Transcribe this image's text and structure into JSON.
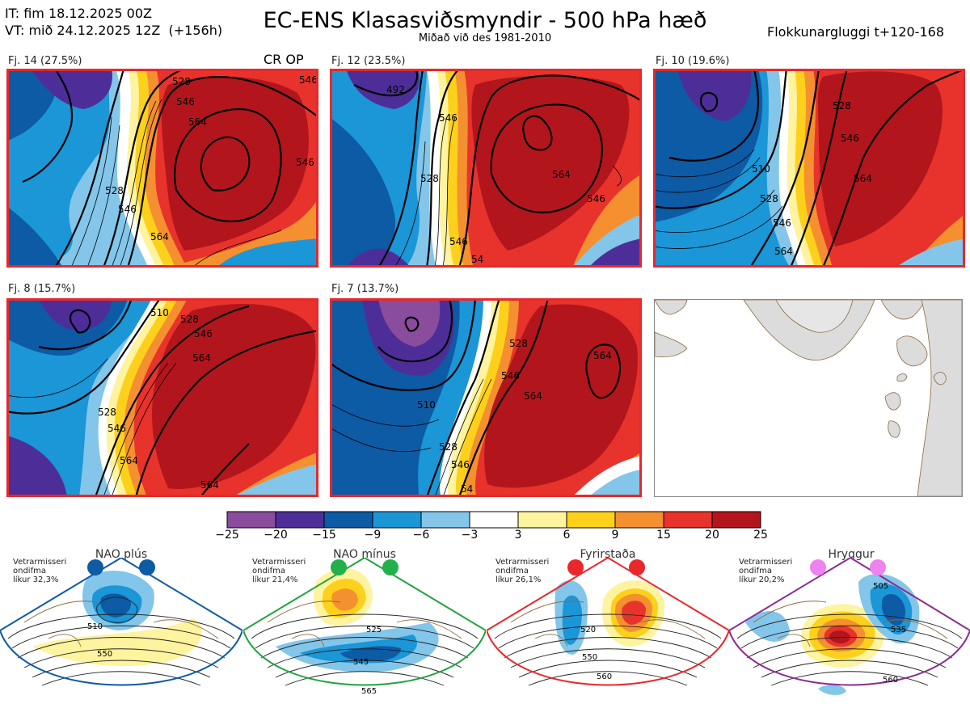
{
  "header": {
    "it_line": "IT: fim 18.12.2025 00Z",
    "vt_line": "VT: mið 24.12.2025 12Z  (+156h)",
    "title": "EC-ENS Klasasviðsmyndir - 500 hPa hæð",
    "subtitle": "Miðað við des 1981-2010",
    "window": "Flokkunargluggi t+120-168",
    "crop_label": "CR OP"
  },
  "colors": {
    "frame": "#e8282b",
    "land": "#dcdcdc",
    "coast": "#8b6a3f",
    "anom": [
      "#8a4c9c",
      "#4d2e98",
      "#0d5aa5",
      "#1b96d6",
      "#83c6ea",
      "#ffffff",
      "#fef39e",
      "#fdd11b",
      "#f4902f",
      "#e7332c",
      "#b2161c"
    ]
  },
  "panels": [
    {
      "label": "Fj. 14 (27.5%)",
      "contours": [
        "528",
        "546",
        "564",
        "546",
        "528",
        "546",
        "564",
        "546"
      ]
    },
    {
      "label": "Fj. 12 (23.5%)",
      "contours": [
        "492",
        "546",
        "528",
        "564",
        "546",
        "546",
        "54"
      ]
    },
    {
      "label": "Fj. 10 (19.6%)",
      "contours": [
        "528",
        "546",
        "564",
        "510",
        "528",
        "546",
        "564"
      ]
    },
    {
      "label": "Fj. 8 (15.7%)",
      "contours": [
        "510",
        "528",
        "546",
        "564",
        "528",
        "546",
        "564",
        "564"
      ]
    },
    {
      "label": "Fj. 7 (13.7%)",
      "contours": [
        "510",
        "528",
        "546",
        "564",
        "546",
        "564",
        "528",
        "54"
      ]
    }
  ],
  "chart_data": {
    "type": "heatmap",
    "title": "EC-ENS Klasasviðsmyndir - 500 hPa hæð",
    "variable": "500 hPa geopotential height anomaly",
    "colorbar_ticks": [
      "−25",
      "−20",
      "−15",
      "−9",
      "−6",
      "−3",
      "3",
      "6",
      "9",
      "15",
      "20",
      "25"
    ],
    "colorbar_bounds": [
      -25,
      -20,
      -15,
      -9,
      -6,
      -3,
      3,
      6,
      9,
      15,
      20,
      25
    ],
    "clusters": [
      {
        "name": "Fj. 14",
        "share_pct": 27.5
      },
      {
        "name": "Fj. 12",
        "share_pct": 23.5
      },
      {
        "name": "Fj. 10",
        "share_pct": 19.6
      },
      {
        "name": "Fj. 8",
        "share_pct": 15.7
      },
      {
        "name": "Fj. 7",
        "share_pct": 13.7
      }
    ]
  },
  "regimes": [
    {
      "name": "NAO plús",
      "note": "Vetrarmisseri\nondifma\nlíkur 32,3%",
      "contours": [
        "510",
        "550"
      ],
      "color": "#0d5aa5",
      "dot": "#0d5aa5"
    },
    {
      "name": "NAO mínus",
      "note": "Vetrarmisseri\nondifma\nlíkur 21,4%",
      "contours": [
        "525",
        "545",
        "565"
      ],
      "color": "#22a340",
      "dot": "#22b04a"
    },
    {
      "name": "Fyrirstaða",
      "note": "Vetrarmisseri\nondifma\nlíkur 26,1%",
      "contours": [
        "520",
        "550",
        "560"
      ],
      "color": "#e8282b",
      "dot": "#e8282b"
    },
    {
      "name": "Hryggur",
      "note": "Vetrarmisseri\nondifma\nlíkur 20,2%",
      "contours": [
        "505",
        "535",
        "560"
      ],
      "color": "#8a2d8f",
      "dot": "#ee82ee"
    }
  ]
}
